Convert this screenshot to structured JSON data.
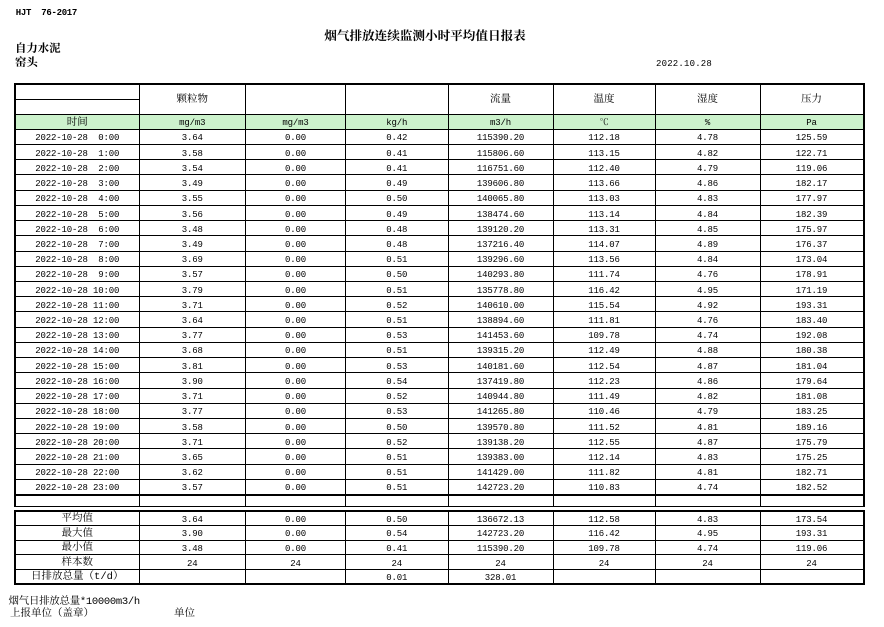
{
  "header": {
    "standard_code": "HJT  76-2017",
    "title": "烟气排放连续监测小时平均值日报表",
    "company": "自力水泥",
    "station": "窑头",
    "date": "2022.10.28"
  },
  "table": {
    "group_headers": [
      "",
      "颗粒物",
      "",
      "",
      "流量",
      "温度",
      "湿度",
      "压力"
    ],
    "unit_row": [
      "时间",
      "mg/m3",
      "mg/m3",
      "kg/h",
      "m3/h",
      "℃",
      "%",
      "Pa"
    ],
    "rows": [
      [
        "2022-10-28  0:00",
        "3.64",
        "0.00",
        "0.42",
        "115390.20",
        "112.18",
        "4.78",
        "125.59"
      ],
      [
        "2022-10-28  1:00",
        "3.58",
        "0.00",
        "0.41",
        "115806.60",
        "113.15",
        "4.82",
        "122.71"
      ],
      [
        "2022-10-28  2:00",
        "3.54",
        "0.00",
        "0.41",
        "116751.60",
        "112.40",
        "4.79",
        "119.06"
      ],
      [
        "2022-10-28  3:00",
        "3.49",
        "0.00",
        "0.49",
        "139606.80",
        "113.66",
        "4.86",
        "182.17"
      ],
      [
        "2022-10-28  4:00",
        "3.55",
        "0.00",
        "0.50",
        "140065.80",
        "113.03",
        "4.83",
        "177.97"
      ],
      [
        "2022-10-28  5:00",
        "3.56",
        "0.00",
        "0.49",
        "138474.60",
        "113.14",
        "4.84",
        "182.39"
      ],
      [
        "2022-10-28  6:00",
        "3.48",
        "0.00",
        "0.48",
        "139120.20",
        "113.31",
        "4.85",
        "175.97"
      ],
      [
        "2022-10-28  7:00",
        "3.49",
        "0.00",
        "0.48",
        "137216.40",
        "114.07",
        "4.89",
        "176.37"
      ],
      [
        "2022-10-28  8:00",
        "3.69",
        "0.00",
        "0.51",
        "139296.60",
        "113.56",
        "4.84",
        "173.04"
      ],
      [
        "2022-10-28  9:00",
        "3.57",
        "0.00",
        "0.50",
        "140293.80",
        "111.74",
        "4.76",
        "178.91"
      ],
      [
        "2022-10-28 10:00",
        "3.79",
        "0.00",
        "0.51",
        "135778.80",
        "116.42",
        "4.95",
        "171.19"
      ],
      [
        "2022-10-28 11:00",
        "3.71",
        "0.00",
        "0.52",
        "140610.00",
        "115.54",
        "4.92",
        "193.31"
      ],
      [
        "2022-10-28 12:00",
        "3.64",
        "0.00",
        "0.51",
        "138894.60",
        "111.81",
        "4.76",
        "183.40"
      ],
      [
        "2022-10-28 13:00",
        "3.77",
        "0.00",
        "0.53",
        "141453.60",
        "109.78",
        "4.74",
        "192.08"
      ],
      [
        "2022-10-28 14:00",
        "3.68",
        "0.00",
        "0.51",
        "139315.20",
        "112.49",
        "4.88",
        "180.38"
      ],
      [
        "2022-10-28 15:00",
        "3.81",
        "0.00",
        "0.53",
        "140181.60",
        "112.54",
        "4.87",
        "181.04"
      ],
      [
        "2022-10-28 16:00",
        "3.90",
        "0.00",
        "0.54",
        "137419.80",
        "112.23",
        "4.86",
        "179.64"
      ],
      [
        "2022-10-28 17:00",
        "3.71",
        "0.00",
        "0.52",
        "140944.80",
        "111.49",
        "4.82",
        "181.08"
      ],
      [
        "2022-10-28 18:00",
        "3.77",
        "0.00",
        "0.53",
        "141265.80",
        "110.46",
        "4.79",
        "183.25"
      ],
      [
        "2022-10-28 19:00",
        "3.58",
        "0.00",
        "0.50",
        "139570.80",
        "111.52",
        "4.81",
        "189.16"
      ],
      [
        "2022-10-28 20:00",
        "3.71",
        "0.00",
        "0.52",
        "139138.20",
        "112.55",
        "4.87",
        "175.79"
      ],
      [
        "2022-10-28 21:00",
        "3.65",
        "0.00",
        "0.51",
        "139383.00",
        "112.14",
        "4.83",
        "175.25"
      ],
      [
        "2022-10-28 22:00",
        "3.62",
        "0.00",
        "0.51",
        "141429.00",
        "111.82",
        "4.81",
        "182.71"
      ],
      [
        "2022-10-28 23:00",
        "3.57",
        "0.00",
        "0.51",
        "142723.20",
        "110.83",
        "4.74",
        "182.52"
      ]
    ],
    "summary_labels": [
      "平均值",
      "最大值",
      "最小值",
      "样本数",
      "日排放总量（t/d）"
    ],
    "summary": [
      [
        "平均值",
        "3.64",
        "0.00",
        "0.50",
        "136672.13",
        "112.58",
        "4.83",
        "173.54"
      ],
      [
        "最大值",
        "3.90",
        "0.00",
        "0.54",
        "142723.20",
        "116.42",
        "4.95",
        "193.31"
      ],
      [
        "最小值",
        "3.48",
        "0.00",
        "0.41",
        "115390.20",
        "109.78",
        "4.74",
        "119.06"
      ],
      [
        "样本数",
        "24",
        "24",
        "24",
        "24",
        "24",
        "24",
        "24"
      ],
      [
        "日排放总量（t/d）",
        "",
        "",
        "0.01",
        "328.01",
        "",
        "",
        ""
      ]
    ]
  },
  "footer": {
    "note": "烟气日排放总量*10000m3/h",
    "report_unit_label": "上报单位（盖章）",
    "unit_label": "单位"
  },
  "colors": {
    "highlight_green": "#ccf2cc",
    "border": "#000000",
    "background": "#ffffff",
    "text": "#000000"
  }
}
